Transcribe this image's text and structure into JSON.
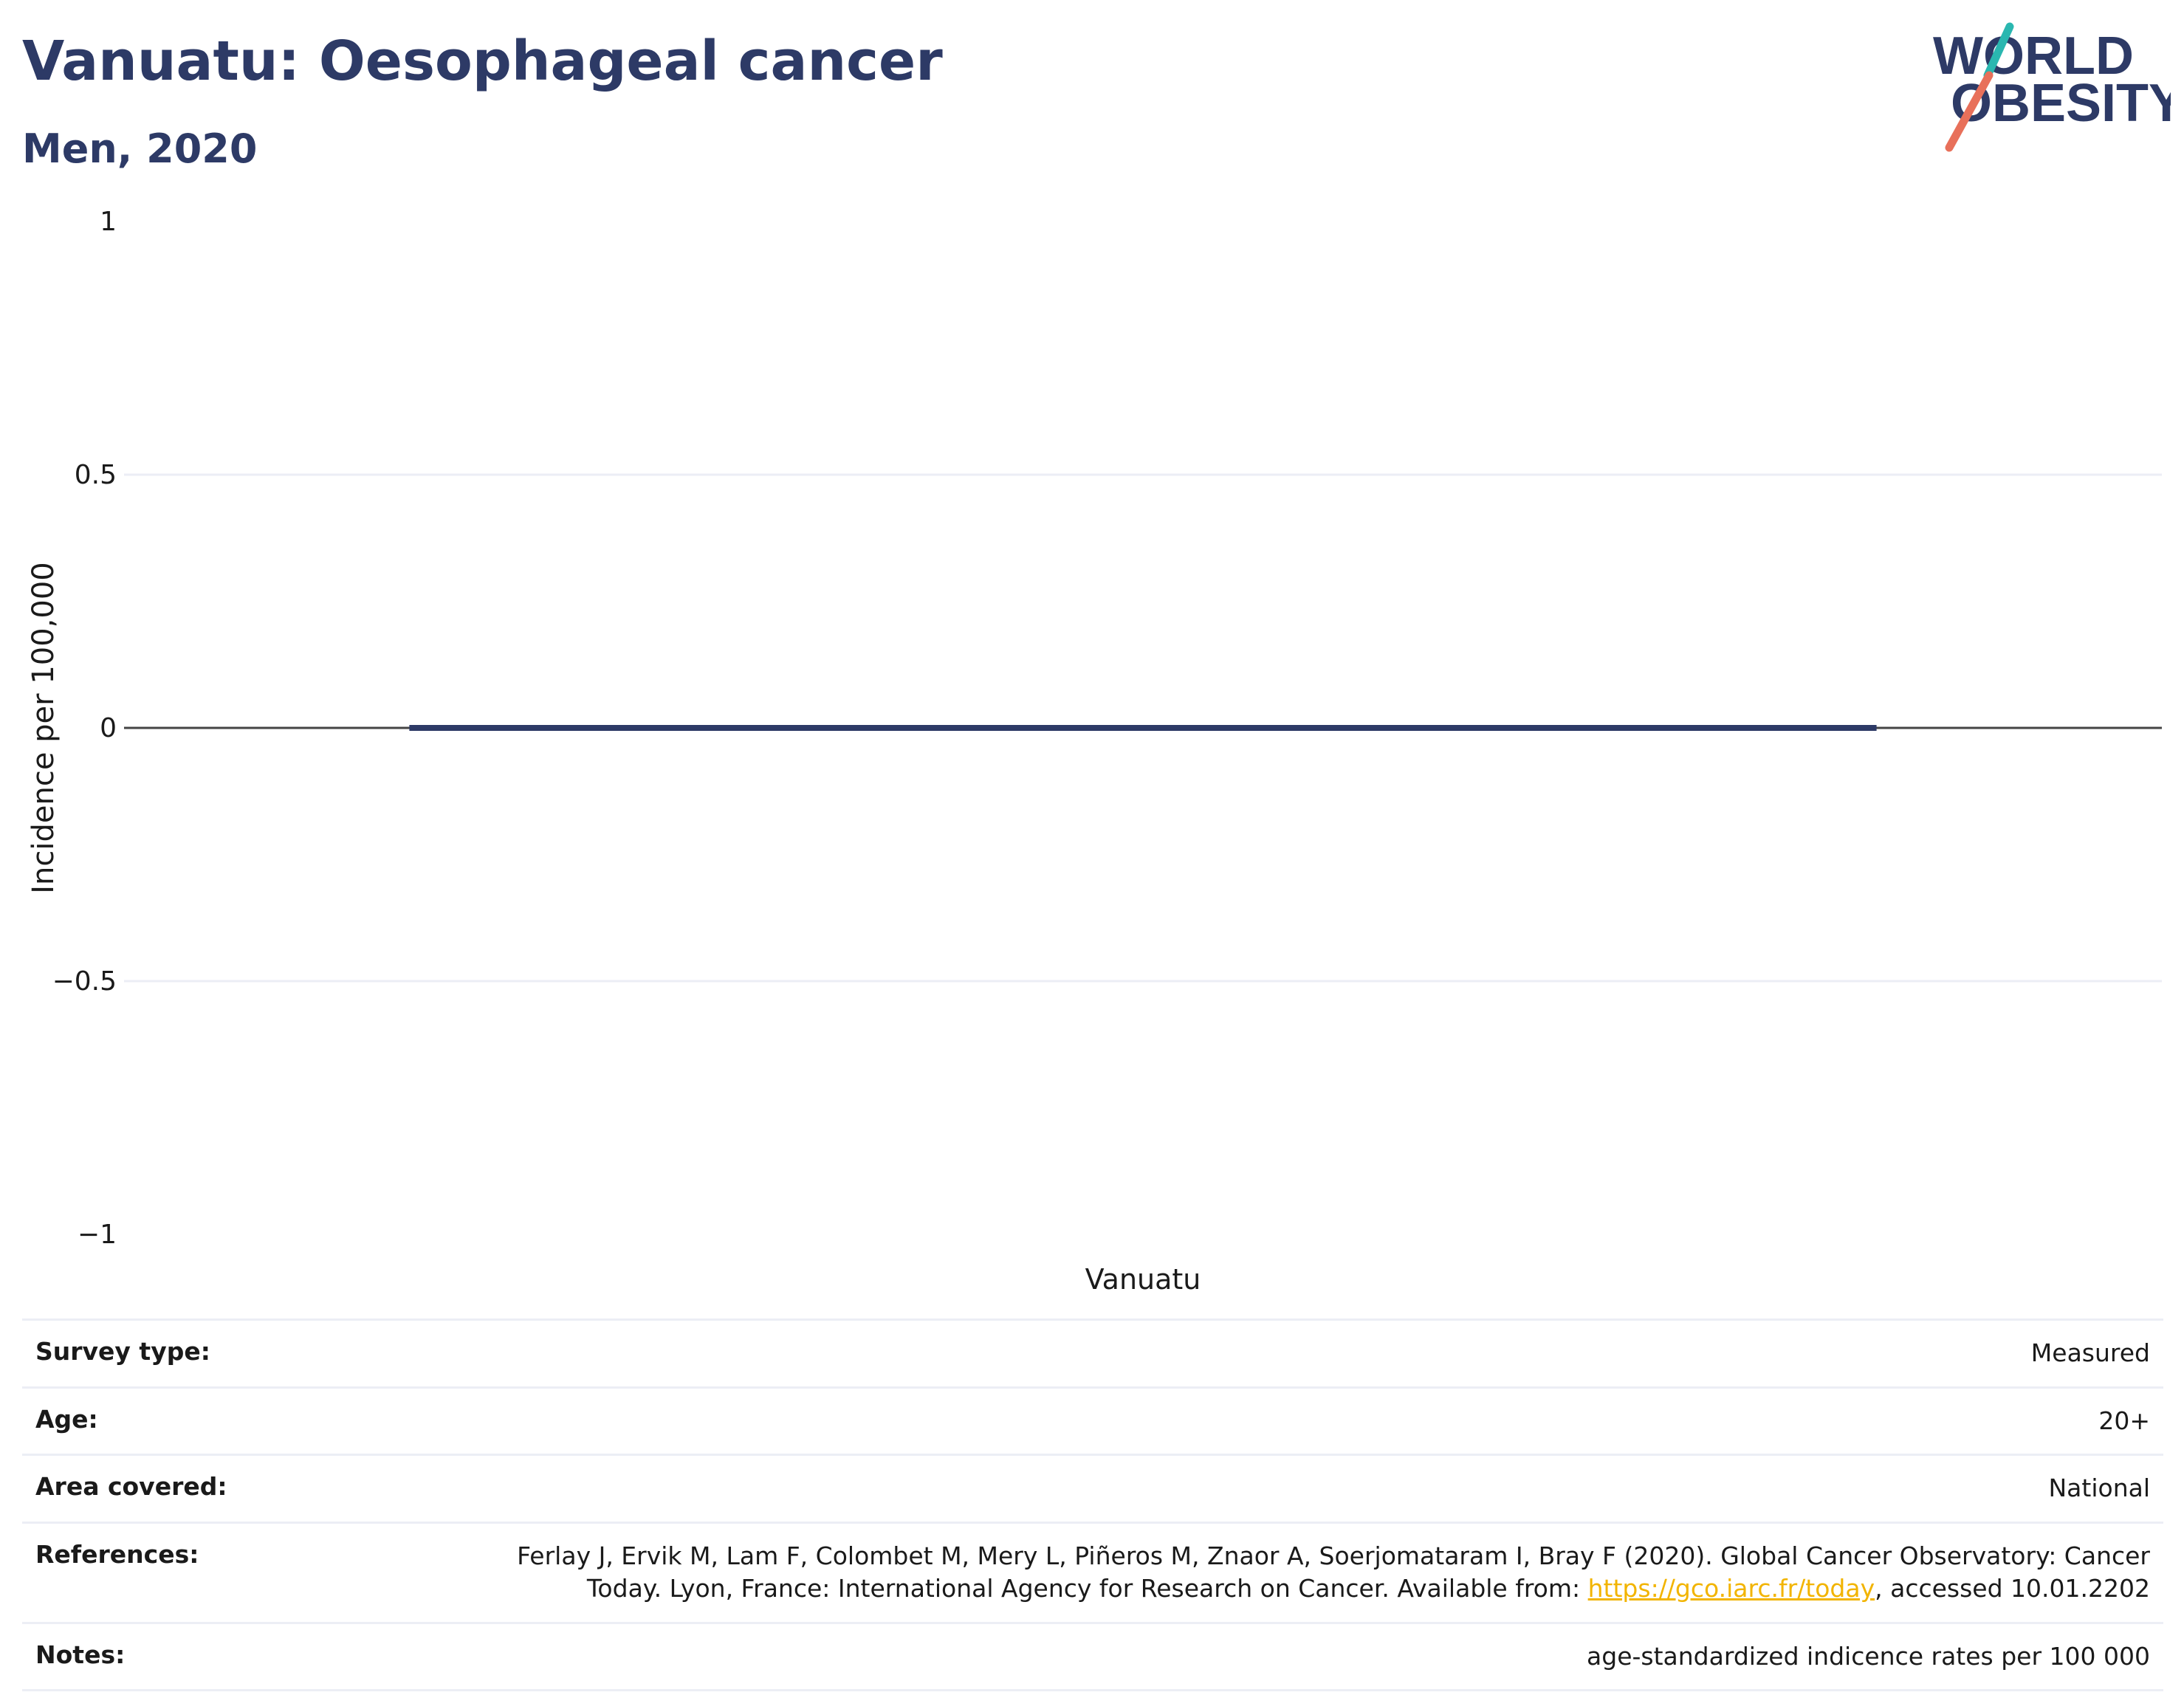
{
  "header": {
    "title": "Vanuatu: Oesophageal cancer",
    "subtitle": "Men, 2020"
  },
  "logo": {
    "line1": "WORLD",
    "line2": "OBESITY",
    "colors": {
      "navy": "#2d3a66",
      "teal": "#2ab7b0",
      "coral": "#e8705a"
    }
  },
  "chart_data": {
    "type": "bar",
    "categories": [
      "Vanuatu"
    ],
    "series": [
      {
        "values": [
          0
        ]
      }
    ],
    "xlabel": "Vanuatu",
    "ylabel": "Incidence per 100,000",
    "ylim": [
      -1,
      1
    ],
    "yticks": [
      1,
      0.5,
      0,
      -0.5,
      -1
    ],
    "ytick_labels": [
      "1",
      "0.5",
      "0",
      "−0.5",
      "−1"
    ],
    "grid": true,
    "legend": "none",
    "bar_color": "#2d3a66"
  },
  "info": {
    "rows": [
      {
        "key": "Survey type:",
        "value": "Measured"
      },
      {
        "key": "Age:",
        "value": "20+"
      },
      {
        "key": "Area covered:",
        "value": "National"
      },
      {
        "key": "References:",
        "value_line1": "Ferlay J, Ervik M, Lam F, Colombet M, Mery L, Piñeros M, Znaor A, Soerjomataram I, Bray F (2020). Global Cancer Observatory: Cancer",
        "value_line2_pre": "Today. Lyon, France: International Agency for Research on Cancer. Available from: ",
        "link": "https://gco.iarc.fr/today",
        "value_line2_post": ", accessed 10.01.2202"
      },
      {
        "key": "Notes:",
        "value": "age-standardized indicence rates per 100 000"
      }
    ]
  }
}
